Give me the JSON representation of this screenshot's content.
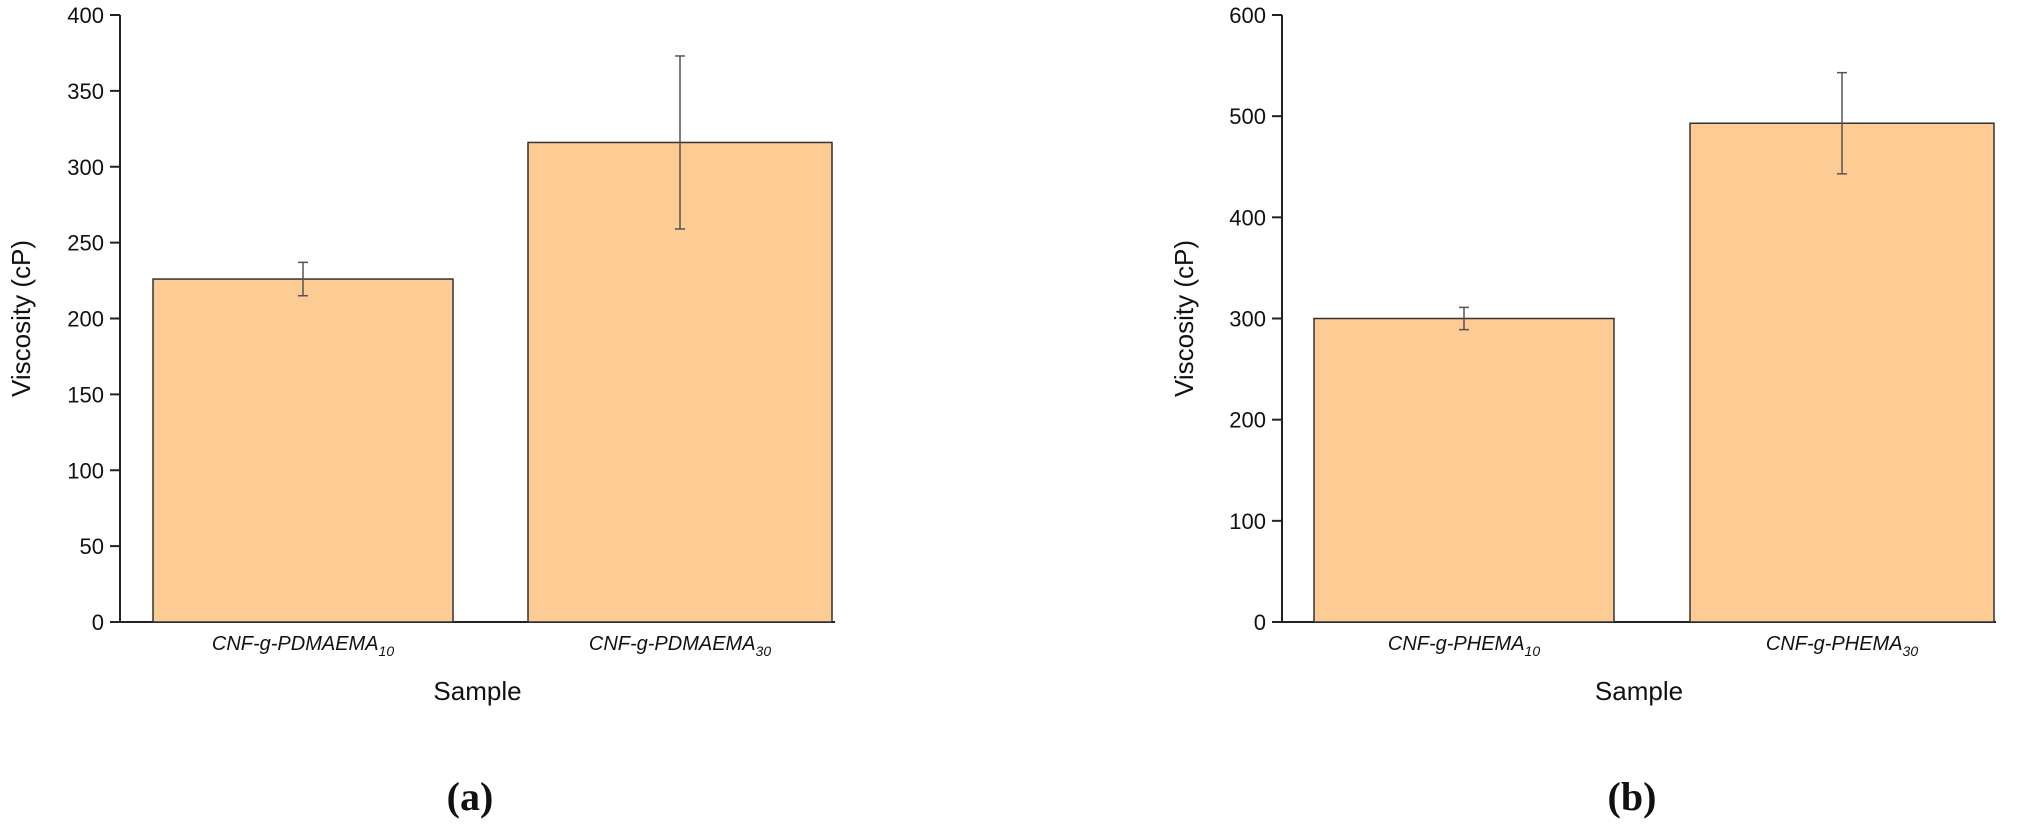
{
  "chart_data": [
    {
      "type": "bar",
      "panel_label": "(a)",
      "xlabel": "Sample",
      "ylabel": "Viscosity (cP)",
      "ylim": [
        0,
        400
      ],
      "yticks": [
        0,
        50,
        100,
        150,
        200,
        250,
        300,
        350,
        400
      ],
      "categories": [
        {
          "base": "CNF-g-PDMAEMA",
          "sub": "10"
        },
        {
          "base": "CNF-g-PDMAEMA",
          "sub": "30"
        }
      ],
      "values": [
        226,
        316
      ],
      "errors": [
        11,
        57
      ],
      "bar_color": "#FDCB94",
      "grid": false
    },
    {
      "type": "bar",
      "panel_label": "(b)",
      "xlabel": "Sample",
      "ylabel": "Viscosity (cP)",
      "ylim": [
        0,
        600
      ],
      "yticks": [
        0,
        100,
        200,
        300,
        400,
        500,
        600
      ],
      "categories": [
        {
          "base": "CNF-g-PHEMA",
          "sub": "10"
        },
        {
          "base": "CNF-g-PHEMA",
          "sub": "30"
        }
      ],
      "values": [
        300,
        493
      ],
      "errors": [
        11,
        50
      ],
      "bar_color": "#FDCB94",
      "grid": false
    }
  ]
}
